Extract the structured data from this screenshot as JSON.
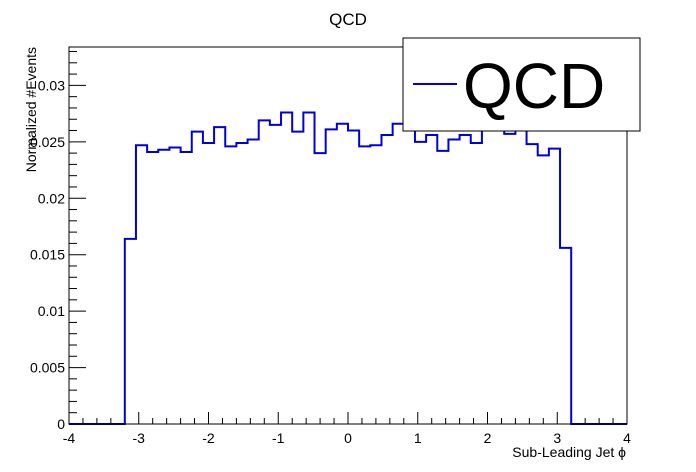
{
  "chart_data": {
    "type": "histogram",
    "title": "QCD",
    "xlabel": "Sub-Leading Jet ϕ",
    "ylabel": "Normalized #Events",
    "xlim": [
      -4,
      4
    ],
    "ylim": [
      0,
      0.0334
    ],
    "x_ticks": [
      -4,
      -3,
      -2,
      -1,
      0,
      1,
      2,
      3,
      4
    ],
    "x_tick_labels": [
      "-4",
      "-3",
      "-2",
      "-1",
      "0",
      "1",
      "2",
      "3",
      "4"
    ],
    "y_ticks": [
      0,
      0.005,
      0.01,
      0.015,
      0.02,
      0.025,
      0.03
    ],
    "y_tick_labels": [
      "0",
      "0.005",
      "0.01",
      "0.015",
      "0.02",
      "0.025",
      "0.03"
    ],
    "grid": false,
    "legend_position": "top-right",
    "series": [
      {
        "name": "QCD",
        "color": "#0000dd",
        "bin_edges": [
          -4.0,
          -3.2,
          -3.04,
          -2.88,
          -2.72,
          -2.56,
          -2.4,
          -2.24,
          -2.08,
          -1.92,
          -1.76,
          -1.6,
          -1.44,
          -1.28,
          -1.12,
          -0.96,
          -0.8,
          -0.64,
          -0.48,
          -0.32,
          -0.16,
          0.0,
          0.16,
          0.32,
          0.48,
          0.64,
          0.8,
          0.96,
          1.12,
          1.28,
          1.44,
          1.6,
          1.76,
          1.92,
          2.08,
          2.24,
          2.4,
          2.56,
          2.72,
          2.88,
          3.04,
          3.2,
          4.0
        ],
        "values": [
          0.0,
          0.0164,
          0.0247,
          0.0241,
          0.0243,
          0.0245,
          0.0241,
          0.0259,
          0.0249,
          0.0263,
          0.0246,
          0.0249,
          0.0252,
          0.0269,
          0.0265,
          0.0276,
          0.0259,
          0.0276,
          0.024,
          0.0261,
          0.0266,
          0.026,
          0.0246,
          0.0247,
          0.0256,
          0.0266,
          0.0263,
          0.025,
          0.0256,
          0.0242,
          0.0252,
          0.0256,
          0.0249,
          0.0263,
          0.0262,
          0.0257,
          0.0263,
          0.0248,
          0.0238,
          0.0244,
          0.0156,
          0.0
        ]
      }
    ]
  }
}
